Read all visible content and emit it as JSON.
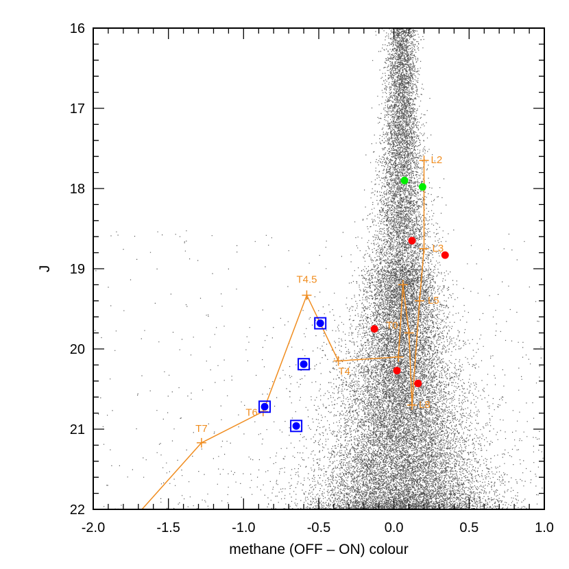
{
  "chart_data": {
    "type": "scatter",
    "xlabel": "methane (OFF – ON) colour",
    "ylabel": "J",
    "xlim": [
      -2.0,
      1.0
    ],
    "ylim": [
      16,
      22
    ],
    "y_inverted": true,
    "x_ticks": [
      "-2.0",
      "-1.5",
      "-1.0",
      "-0.5",
      "0.0",
      "0.5",
      "1.0"
    ],
    "y_ticks": [
      "16",
      "17",
      "18",
      "19",
      "20",
      "21",
      "22"
    ],
    "colors": {
      "field": "#555555",
      "track": "#f08c1e",
      "l_candidates": "#ff0000",
      "green_candidates": "#00ee00",
      "t_candidates": "#0000ff",
      "frame": "#000000"
    },
    "background_field": {
      "description": "dense field-star population",
      "ridge_x": 0.05,
      "spread_x_at_bright": 0.05,
      "spread_x_at_faint": 0.3
    },
    "track": {
      "name": "spectral type sequence",
      "points": [
        {
          "label": "L2",
          "x": 0.2,
          "y": 17.65
        },
        {
          "label": "L3",
          "x": 0.2,
          "y": 18.75
        },
        {
          "label": "L5",
          "x": 0.17,
          "y": 19.4
        },
        {
          "label": "L8",
          "x": 0.12,
          "y": 20.7
        },
        {
          "label": "T0",
          "x": 0.1,
          "y": 19.8
        },
        {
          "label": "",
          "x": 0.06,
          "y": 19.2
        },
        {
          "label": "",
          "x": 0.03,
          "y": 20.1
        },
        {
          "label": "T4",
          "x": -0.37,
          "y": 20.15
        },
        {
          "label": "T4.5",
          "x": -0.58,
          "y": 19.33
        },
        {
          "label": "T6",
          "x": -0.87,
          "y": 20.78
        },
        {
          "label": "T7",
          "x": -1.28,
          "y": 21.17
        },
        {
          "label": "",
          "x": -1.7,
          "y": 22.05
        }
      ]
    },
    "series": [
      {
        "name": "green candidates",
        "marker": "circle",
        "points": [
          {
            "x": 0.07,
            "y": 17.9
          },
          {
            "x": 0.19,
            "y": 17.98
          }
        ]
      },
      {
        "name": "red candidates",
        "marker": "circle",
        "points": [
          {
            "x": 0.12,
            "y": 18.65
          },
          {
            "x": 0.34,
            "y": 18.83
          },
          {
            "x": -0.13,
            "y": 19.75
          },
          {
            "x": 0.02,
            "y": 20.27
          },
          {
            "x": 0.16,
            "y": 20.43
          }
        ]
      },
      {
        "name": "blue candidates",
        "marker": "boxed-circle",
        "points": [
          {
            "x": -0.49,
            "y": 19.68
          },
          {
            "x": -0.6,
            "y": 20.19
          },
          {
            "x": -0.86,
            "y": 20.72
          },
          {
            "x": -0.65,
            "y": 20.96
          }
        ]
      }
    ]
  }
}
